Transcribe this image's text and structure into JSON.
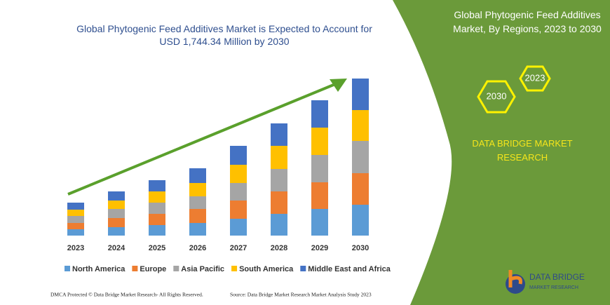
{
  "chart_data": {
    "type": "bar",
    "stacked": true,
    "title": "Global Phytogenic Feed Additives Market is Expected to Account for USD 1,744.34 Million by 2030",
    "categories": [
      "2023",
      "2024",
      "2025",
      "2026",
      "2027",
      "2028",
      "2029",
      "2030"
    ],
    "series": [
      {
        "name": "North America",
        "color": "#5b9bd5",
        "values": [
          9,
          12,
          15,
          18,
          24,
          31,
          38,
          44
        ]
      },
      {
        "name": "Europe",
        "color": "#ed7d31",
        "values": [
          9,
          13,
          16,
          20,
          26,
          32,
          38,
          45
        ]
      },
      {
        "name": "Asia Pacific",
        "color": "#a5a5a5",
        "values": [
          10,
          13,
          16,
          18,
          25,
          32,
          39,
          46
        ]
      },
      {
        "name": "South America",
        "color": "#ffc000",
        "values": [
          9,
          12,
          16,
          19,
          26,
          33,
          39,
          44
        ]
      },
      {
        "name": "Middle East and Africa",
        "color": "#4472c4",
        "values": [
          10,
          13,
          16,
          21,
          27,
          32,
          39,
          45
        ]
      }
    ]
  },
  "panel": {
    "title": "Global Phytogenic Feed Additives Market, By Regions, 2023 to 2030",
    "hex_labels": [
      "2023",
      "2030"
    ],
    "brand": "DATA BRIDGE MARKET RESEARCH"
  },
  "logo": {
    "name": "DATA BRIDGE",
    "tagline": "MARKET RESEARCH"
  },
  "footer": {
    "left": "DMCA Protected © Data Bridge Market Research- All Rights Reserved.",
    "right": "Source: Data Bridge Market Research Market Analysis Study 2023"
  }
}
